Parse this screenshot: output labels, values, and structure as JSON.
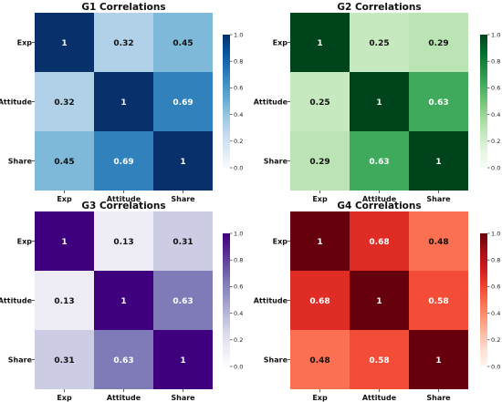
{
  "chart_data": [
    {
      "type": "heatmap",
      "title": "G1 Correlations",
      "x_categories": [
        "Exp",
        "Attitude",
        "Share"
      ],
      "y_categories": [
        "Exp",
        "Attitude",
        "Share"
      ],
      "values": [
        [
          1,
          0.32,
          0.45
        ],
        [
          0.32,
          1,
          0.69
        ],
        [
          0.45,
          0.69,
          1
        ]
      ],
      "value_labels": [
        [
          "1",
          "0.32",
          "0.45"
        ],
        [
          "0.32",
          "1",
          "0.69"
        ],
        [
          "0.45",
          "0.69",
          "1"
        ]
      ],
      "colormap": "Blues",
      "colors": [
        "#f7fbff",
        "#deebf7",
        "#c6dbef",
        "#9ecae1",
        "#6baed6",
        "#4292c6",
        "#2171b5",
        "#08519c",
        "#08306b"
      ],
      "colorbar": {
        "range": [
          0.0,
          1.0
        ],
        "ticks": [
          "0.0",
          "0.2",
          "0.4",
          "0.6",
          "0.8",
          "1.0"
        ]
      }
    },
    {
      "type": "heatmap",
      "title": "G2 Correlations",
      "x_categories": [
        "Exp",
        "Attitude",
        "Share"
      ],
      "y_categories": [
        "Exp",
        "Attitude",
        "Share"
      ],
      "values": [
        [
          1,
          0.25,
          0.29
        ],
        [
          0.25,
          1,
          0.63
        ],
        [
          0.29,
          0.63,
          1
        ]
      ],
      "value_labels": [
        [
          "1",
          "0.25",
          "0.29"
        ],
        [
          "0.25",
          "1",
          "0.63"
        ],
        [
          "0.29",
          "0.63",
          "1"
        ]
      ],
      "colormap": "Greens",
      "colors": [
        "#f7fcf5",
        "#e5f5e0",
        "#c7e9c0",
        "#a1d99b",
        "#74c476",
        "#41ab5d",
        "#238b45",
        "#006d2c",
        "#00441b"
      ],
      "colorbar": {
        "range": [
          0.0,
          1.0
        ],
        "ticks": [
          "0.0",
          "0.2",
          "0.4",
          "0.6",
          "0.8",
          "1.0"
        ]
      }
    },
    {
      "type": "heatmap",
      "title": "G3 Correlations",
      "x_categories": [
        "Exp",
        "Attitude",
        "Share"
      ],
      "y_categories": [
        "Exp",
        "Attitude",
        "Share"
      ],
      "values": [
        [
          1,
          0.13,
          0.31
        ],
        [
          0.13,
          1,
          0.63
        ],
        [
          0.31,
          0.63,
          1
        ]
      ],
      "value_labels": [
        [
          "1",
          "0.13",
          "0.31"
        ],
        [
          "0.13",
          "1",
          "0.63"
        ],
        [
          "0.31",
          "0.63",
          "1"
        ]
      ],
      "colormap": "Purples",
      "colors": [
        "#fcfbfd",
        "#efedf5",
        "#dadaeb",
        "#bcbddc",
        "#9e9ac8",
        "#807dba",
        "#6a51a3",
        "#54278f",
        "#3f007d"
      ],
      "colorbar": {
        "range": [
          0.0,
          1.0
        ],
        "ticks": [
          "0.0",
          "0.2",
          "0.4",
          "0.6",
          "0.8",
          "1.0"
        ]
      }
    },
    {
      "type": "heatmap",
      "title": "G4 Correlations",
      "x_categories": [
        "Exp",
        "Attitude",
        "Share"
      ],
      "y_categories": [
        "Exp",
        "Attitude",
        "Share"
      ],
      "values": [
        [
          1,
          0.68,
          0.48
        ],
        [
          0.68,
          1,
          0.58
        ],
        [
          0.48,
          0.58,
          1
        ]
      ],
      "value_labels": [
        [
          "1",
          "0.68",
          "0.48"
        ],
        [
          "0.68",
          "1",
          "0.58"
        ],
        [
          "0.48",
          "0.58",
          "1"
        ]
      ],
      "colormap": "Reds",
      "colors": [
        "#fff5f0",
        "#fee0d2",
        "#fcbba1",
        "#fc9272",
        "#fb6a4a",
        "#ef3b2c",
        "#cb181d",
        "#a50f15",
        "#67000d"
      ],
      "colorbar": {
        "range": [
          0.0,
          1.0
        ],
        "ticks": [
          "0.0",
          "0.2",
          "0.4",
          "0.6",
          "0.8",
          "1.0"
        ]
      }
    }
  ]
}
